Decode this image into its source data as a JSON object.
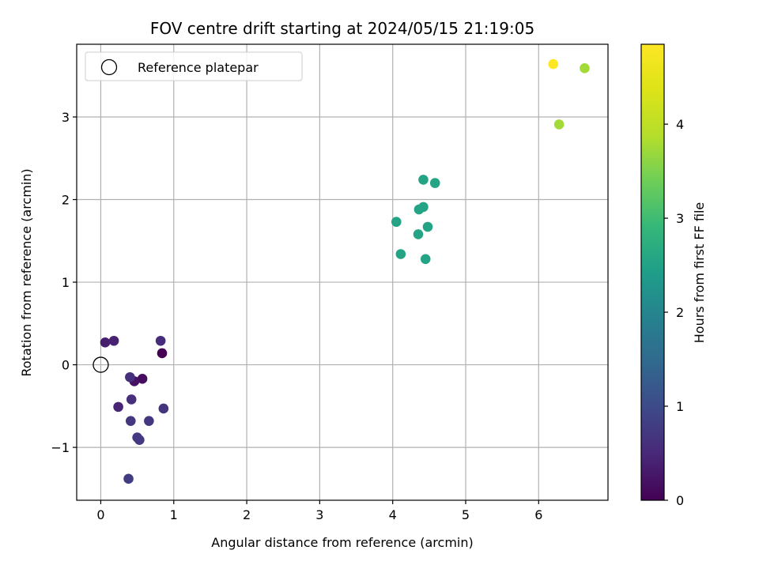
{
  "chart_data": {
    "type": "scatter",
    "title": "FOV centre drift starting at 2024/05/15 21:19:05",
    "xlabel": "Angular distance from reference (arcmin)",
    "ylabel": "Rotation from reference (arcmin)",
    "xlim": [
      -0.33,
      6.95
    ],
    "ylim": [
      -1.64,
      3.88
    ],
    "xticks": [
      0,
      1,
      2,
      3,
      4,
      5,
      6
    ],
    "yticks": [
      -1,
      0,
      1,
      2,
      3
    ],
    "grid": true,
    "legend": {
      "placement": "top-left",
      "entries": [
        "Reference platepar"
      ]
    },
    "reference_point": {
      "x": 0,
      "y": 0,
      "name": "Reference platepar"
    },
    "colorbar": {
      "label": "Hours from first FF file",
      "range": [
        0,
        4.85
      ],
      "ticks": [
        0,
        1,
        2,
        3,
        4
      ],
      "colormap": "viridis"
    },
    "points": [
      {
        "x": 0.84,
        "y": 0.14,
        "c": 0.0
      },
      {
        "x": 0.57,
        "y": -0.17,
        "c": 0.15
      },
      {
        "x": 0.46,
        "y": -0.2,
        "c": 0.2
      },
      {
        "x": 0.06,
        "y": 0.27,
        "c": 0.35
      },
      {
        "x": 0.18,
        "y": 0.29,
        "c": 0.4
      },
      {
        "x": 0.24,
        "y": -0.51,
        "c": 0.45
      },
      {
        "x": 0.82,
        "y": 0.29,
        "c": 0.55
      },
      {
        "x": 0.42,
        "y": -0.42,
        "c": 0.6
      },
      {
        "x": 0.4,
        "y": -0.15,
        "c": 0.6
      },
      {
        "x": 0.86,
        "y": -0.53,
        "c": 0.65
      },
      {
        "x": 0.66,
        "y": -0.68,
        "c": 0.7
      },
      {
        "x": 0.41,
        "y": -0.68,
        "c": 0.7
      },
      {
        "x": 0.53,
        "y": -0.91,
        "c": 0.75
      },
      {
        "x": 0.5,
        "y": -0.88,
        "c": 0.75
      },
      {
        "x": 0.38,
        "y": -1.38,
        "c": 0.8
      },
      {
        "x": 4.05,
        "y": 1.73,
        "c": 2.55
      },
      {
        "x": 4.11,
        "y": 1.34,
        "c": 2.55
      },
      {
        "x": 4.35,
        "y": 1.58,
        "c": 2.55
      },
      {
        "x": 4.36,
        "y": 1.88,
        "c": 2.55
      },
      {
        "x": 4.42,
        "y": 1.91,
        "c": 2.55
      },
      {
        "x": 4.42,
        "y": 2.24,
        "c": 2.55
      },
      {
        "x": 4.45,
        "y": 1.28,
        "c": 2.55
      },
      {
        "x": 4.48,
        "y": 1.67,
        "c": 2.55
      },
      {
        "x": 4.58,
        "y": 2.2,
        "c": 2.55
      },
      {
        "x": 6.28,
        "y": 2.91,
        "c": 3.75
      },
      {
        "x": 6.63,
        "y": 3.59,
        "c": 3.75
      },
      {
        "x": 6.2,
        "y": 3.64,
        "c": 4.85
      }
    ]
  }
}
